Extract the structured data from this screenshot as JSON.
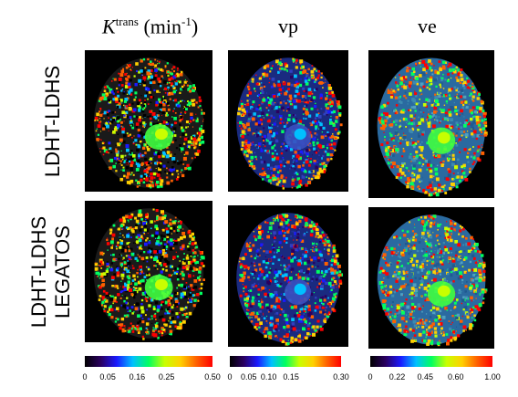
{
  "columns": [
    {
      "prefix": "K",
      "sup": "trans",
      "suffix": " (min",
      "unit_sup": "-1",
      "close": ")"
    },
    {
      "label": "vp"
    },
    {
      "label": "ve"
    }
  ],
  "rows": [
    {
      "label": "LDHT-LDHS"
    },
    {
      "label_line1": "LDHT-LDHS",
      "label_line2": "LEGATOS"
    }
  ],
  "colorbars": [
    {
      "ticks": [
        "0",
        "0.05",
        "0.16",
        "0.25",
        "0.50"
      ],
      "tick_pos": [
        0,
        0.18,
        0.41,
        0.64,
        1.0
      ]
    },
    {
      "ticks": [
        "0",
        "0.05",
        "0.10",
        "0.15",
        "0.30"
      ],
      "tick_pos": [
        0,
        0.17,
        0.35,
        0.55,
        1.0
      ]
    },
    {
      "ticks": [
        "0",
        "0.22",
        "0.45",
        "0.60",
        "1.00"
      ],
      "tick_pos": [
        0,
        0.22,
        0.45,
        0.7,
        1.0
      ]
    }
  ],
  "colors": {
    "background": "#ffffff",
    "panel_bg": "#000000",
    "colormap": [
      "#000000",
      "#2a0060",
      "#1a1aff",
      "#00c0ff",
      "#00ff60",
      "#c8ff00",
      "#ffd000",
      "#ff6000",
      "#ff0000"
    ]
  }
}
